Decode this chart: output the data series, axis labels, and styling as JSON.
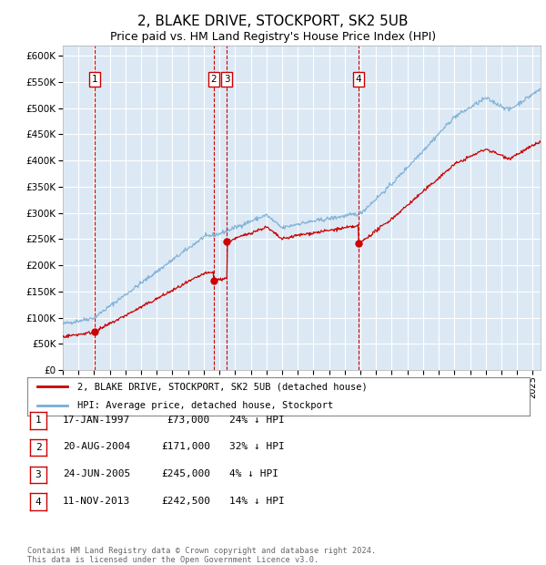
{
  "title": "2, BLAKE DRIVE, STOCKPORT, SK2 5UB",
  "subtitle": "Price paid vs. HM Land Registry's House Price Index (HPI)",
  "title_fontsize": 11,
  "subtitle_fontsize": 9,
  "background_color": "#dce9f5",
  "grid_color": "#ffffff",
  "ylim": [
    0,
    620000
  ],
  "yticks": [
    0,
    50000,
    100000,
    150000,
    200000,
    250000,
    300000,
    350000,
    400000,
    450000,
    500000,
    550000,
    600000
  ],
  "sale_dates_num": [
    1997.04,
    2004.64,
    2005.48,
    2013.86
  ],
  "sale_prices": [
    73000,
    171000,
    245000,
    242500
  ],
  "sale_labels": [
    "1",
    "2",
    "3",
    "4"
  ],
  "sale_color": "#cc0000",
  "hpi_color": "#7aadd4",
  "vline_color": "#cc0000",
  "legend_entries": [
    "2, BLAKE DRIVE, STOCKPORT, SK2 5UB (detached house)",
    "HPI: Average price, detached house, Stockport"
  ],
  "table_rows": [
    [
      "1",
      "17-JAN-1997",
      "£73,000",
      "24% ↓ HPI"
    ],
    [
      "2",
      "20-AUG-2004",
      "£171,000",
      "32% ↓ HPI"
    ],
    [
      "3",
      "24-JUN-2005",
      "£245,000",
      "4% ↓ HPI"
    ],
    [
      "4",
      "11-NOV-2013",
      "£242,500",
      "14% ↓ HPI"
    ]
  ],
  "footnote": "Contains HM Land Registry data © Crown copyright and database right 2024.\nThis data is licensed under the Open Government Licence v3.0.",
  "xmin": 1995.0,
  "xmax": 2025.5
}
